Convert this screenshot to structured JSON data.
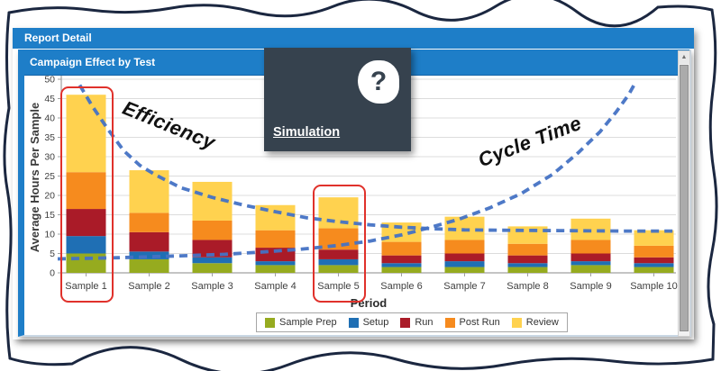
{
  "window": {
    "title": "Report Detail"
  },
  "panel": {
    "title": "Campaign Effect by Test"
  },
  "overlay": {
    "label": "Simulation",
    "icon": "question-mark-icon",
    "icon_glyph": "?"
  },
  "scrollbar": {
    "up_glyph": "▲"
  },
  "colors": {
    "header_blue": "#1E7EC8",
    "tile_dark": "#36424E",
    "highlight_red": "#E0312B",
    "curve_blue": "#4472C4",
    "grid": "#DCDCDC",
    "axis": "#A0A0A0",
    "tick_text": "#404040"
  },
  "chart_data": {
    "type": "bar",
    "stacked": true,
    "title": "Campaign Effect by Test",
    "xlabel": "Period",
    "ylabel": "Average Hours Per Sample",
    "ylim": [
      0,
      50
    ],
    "ytick_step": 5,
    "grid": true,
    "legend_position": "bottom",
    "categories": [
      "Sample 1",
      "Sample 2",
      "Sample 3",
      "Sample 4",
      "Sample 5",
      "Sample 6",
      "Sample 7",
      "Sample 8",
      "Sample 9",
      "Sample 10"
    ],
    "highlighted_categories": [
      "Sample 1",
      "Sample 5"
    ],
    "series": [
      {
        "name": "Sample Prep",
        "color": "#96AB1F",
        "values": [
          5,
          3.5,
          2.5,
          2,
          2,
          1.5,
          1.5,
          1.5,
          2,
          1.5
        ]
      },
      {
        "name": "Setup",
        "color": "#1F6FB4",
        "values": [
          4.5,
          2,
          1.5,
          1,
          1.5,
          1,
          1.5,
          1,
          1,
          1
        ]
      },
      {
        "name": "Run",
        "color": "#AA1B28",
        "values": [
          7,
          5,
          4.5,
          3.5,
          2.5,
          2,
          2,
          2,
          2,
          1.5
        ]
      },
      {
        "name": "Post Run",
        "color": "#F68B1E",
        "values": [
          9.5,
          5,
          5,
          4.5,
          5.5,
          3.5,
          3.5,
          3,
          3.5,
          3
        ]
      },
      {
        "name": "Review",
        "color": "#FFD24F",
        "values": [
          20,
          11,
          10,
          6.5,
          8,
          5,
          6,
          4.5,
          5.5,
          4
        ]
      }
    ],
    "totals": [
      46,
      26.5,
      23.5,
      17.5,
      19.5,
      13,
      14.5,
      12,
      14,
      11
    ],
    "curves": [
      {
        "name": "Efficiency",
        "color": "#4472C4",
        "style": "dashed",
        "points": [
          [
            0.9,
            48.5
          ],
          [
            1.1,
            43
          ],
          [
            1.35,
            37
          ],
          [
            1.6,
            31.5
          ],
          [
            1.85,
            27.8
          ],
          [
            2.1,
            25.3
          ],
          [
            2.5,
            22
          ],
          [
            3,
            19.5
          ],
          [
            3.5,
            17.5
          ],
          [
            4,
            15.8
          ],
          [
            4.5,
            14.2
          ],
          [
            5,
            13.2
          ],
          [
            5.5,
            12.4
          ],
          [
            6,
            11.8
          ],
          [
            6.5,
            11.4
          ],
          [
            7,
            11.1
          ],
          [
            7.6,
            11
          ],
          [
            8.5,
            10.9
          ],
          [
            9.5,
            10.8
          ],
          [
            10.3,
            10.8
          ]
        ]
      },
      {
        "name": "Cycle Time",
        "color": "#4472C4",
        "style": "dashed",
        "points": [
          [
            0.55,
            3.6
          ],
          [
            1.5,
            3.9
          ],
          [
            2.5,
            4.4
          ],
          [
            3.2,
            4.8
          ],
          [
            3.8,
            5.4
          ],
          [
            4.4,
            6.1
          ],
          [
            5,
            7.1
          ],
          [
            5.5,
            8.2
          ],
          [
            6,
            9.8
          ],
          [
            6.4,
            11.5
          ],
          [
            6.9,
            13.8
          ],
          [
            7.4,
            16.8
          ],
          [
            7.9,
            20.5
          ],
          [
            8.4,
            25.5
          ],
          [
            8.8,
            31
          ],
          [
            9.15,
            36.5
          ],
          [
            9.4,
            41.5
          ],
          [
            9.6,
            46
          ],
          [
            9.72,
            49.5
          ]
        ]
      }
    ]
  }
}
